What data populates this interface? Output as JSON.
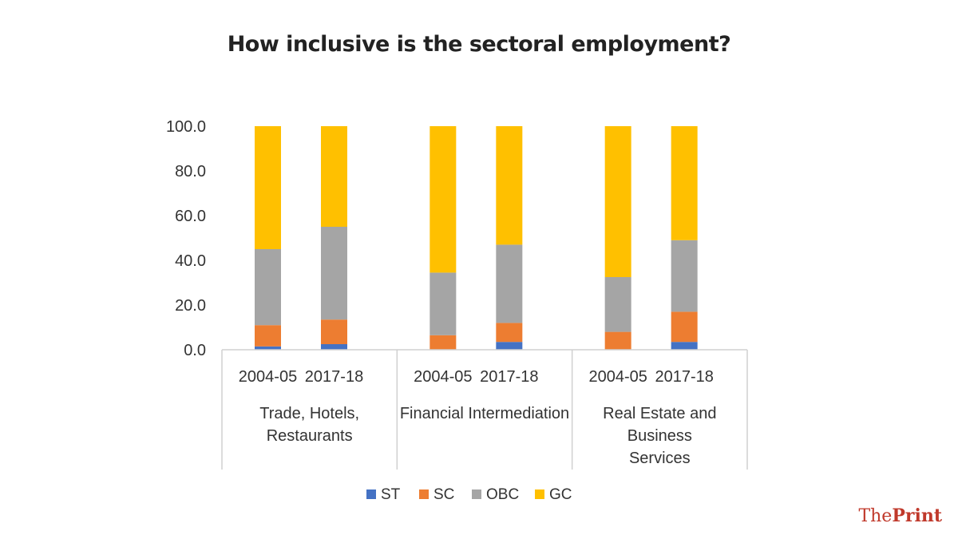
{
  "chart_data": {
    "type": "bar",
    "stacked": true,
    "title": "How inclusive is the sectoral employment?",
    "xlabel": "",
    "ylabel": "",
    "ylim": [
      0,
      100
    ],
    "yticks": [
      "0.0",
      "20.0",
      "40.0",
      "60.0",
      "80.0",
      "100.0"
    ],
    "groups": [
      {
        "label": "Trade, Hotels, Restaurants",
        "label_lines": [
          "Trade, Hotels,",
          "Restaurants"
        ]
      },
      {
        "label": "Financial Intermediation",
        "label_lines": [
          "Financial Intermediation"
        ]
      },
      {
        "label": "Real Estate and Business Services",
        "label_lines": [
          "Real Estate and",
          "Business",
          "Services"
        ]
      }
    ],
    "periods": [
      "2004-05",
      "2017-18"
    ],
    "series": [
      {
        "name": "ST",
        "color": "#4472c4",
        "values": [
          [
            1.5,
            2.5
          ],
          [
            0.0,
            3.5
          ],
          [
            0.0,
            3.5
          ]
        ]
      },
      {
        "name": "SC",
        "color": "#ed7d31",
        "values": [
          [
            9.5,
            11.0
          ],
          [
            6.5,
            8.5
          ],
          [
            8.0,
            13.5
          ]
        ]
      },
      {
        "name": "OBC",
        "color": "#a5a5a5",
        "values": [
          [
            34.0,
            41.5
          ],
          [
            28.0,
            35.0
          ],
          [
            24.5,
            32.0
          ]
        ]
      },
      {
        "name": "GC",
        "color": "#ffc000",
        "values": [
          [
            55.0,
            45.0
          ],
          [
            65.5,
            53.0
          ],
          [
            67.5,
            51.0
          ]
        ]
      }
    ],
    "grid": false,
    "legend_position": "bottom"
  },
  "brand": {
    "part1": "The",
    "part2": "Print"
  }
}
